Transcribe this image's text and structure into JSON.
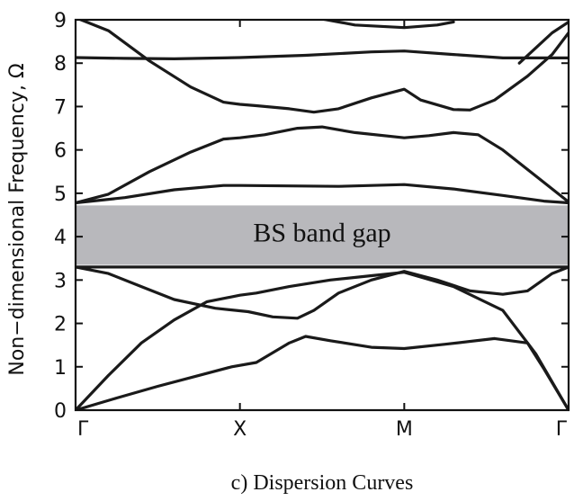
{
  "chart_data": {
    "type": "line",
    "ylabel": "Non−dimensional Frequency, Ω",
    "ylim": [
      0,
      9
    ],
    "yticks": [
      "0",
      "1",
      "2",
      "3",
      "4",
      "5",
      "6",
      "7",
      "8",
      "9"
    ],
    "xlim": [
      0,
      3
    ],
    "xticks": [
      {
        "label": "Γ",
        "pos": 0
      },
      {
        "label": "X",
        "pos": 1
      },
      {
        "label": "M",
        "pos": 2
      },
      {
        "label": "Γ",
        "pos": 3
      }
    ],
    "band_gap": {
      "label": "BS band gap",
      "from": 3.35,
      "to": 4.72,
      "color": "#b8b8bc"
    },
    "caption": "c) Dispersion Curves",
    "series": [
      {
        "points": [
          [
            0,
            0
          ],
          [
            0.25,
            0.28
          ],
          [
            0.5,
            0.55
          ],
          [
            0.75,
            0.8
          ],
          [
            0.95,
            1.0
          ],
          [
            1.1,
            1.1
          ],
          [
            1.3,
            1.55
          ],
          [
            1.4,
            1.7
          ],
          [
            1.55,
            1.6
          ],
          [
            1.8,
            1.45
          ],
          [
            2.0,
            1.42
          ],
          [
            2.25,
            1.52
          ],
          [
            2.55,
            1.65
          ],
          [
            2.75,
            1.55
          ],
          [
            2.85,
            0.95
          ],
          [
            3,
            0
          ]
        ]
      },
      {
        "points": [
          [
            0,
            0
          ],
          [
            0.2,
            0.8
          ],
          [
            0.4,
            1.55
          ],
          [
            0.6,
            2.08
          ],
          [
            0.8,
            2.5
          ],
          [
            1.0,
            2.65
          ],
          [
            1.1,
            2.7
          ],
          [
            1.3,
            2.85
          ],
          [
            1.55,
            3.0
          ],
          [
            1.8,
            3.1
          ],
          [
            2.0,
            3.18
          ],
          [
            2.3,
            2.85
          ],
          [
            2.6,
            2.3
          ],
          [
            2.8,
            1.3
          ],
          [
            3,
            0
          ]
        ]
      },
      {
        "points": [
          [
            0,
            3.3
          ],
          [
            0.2,
            3.15
          ],
          [
            0.4,
            2.85
          ],
          [
            0.6,
            2.55
          ],
          [
            0.85,
            2.35
          ],
          [
            1.05,
            2.27
          ],
          [
            1.2,
            2.15
          ],
          [
            1.35,
            2.12
          ],
          [
            1.45,
            2.3
          ],
          [
            1.6,
            2.7
          ],
          [
            1.8,
            3.0
          ],
          [
            2.0,
            3.2
          ],
          [
            2.2,
            3.0
          ],
          [
            2.4,
            2.75
          ],
          [
            2.6,
            2.67
          ],
          [
            2.75,
            2.75
          ],
          [
            2.9,
            3.15
          ],
          [
            3,
            3.3
          ]
        ]
      },
      {
        "points": [
          [
            0,
            3.3
          ],
          [
            3,
            3.3
          ]
        ]
      },
      {
        "points": [
          [
            0,
            4.78
          ],
          [
            0.3,
            4.9
          ],
          [
            0.6,
            5.08
          ],
          [
            0.9,
            5.18
          ],
          [
            1.0,
            5.18
          ],
          [
            1.3,
            5.17
          ],
          [
            1.6,
            5.16
          ],
          [
            2.0,
            5.2
          ],
          [
            2.3,
            5.1
          ],
          [
            2.6,
            4.95
          ],
          [
            2.85,
            4.82
          ],
          [
            3,
            4.78
          ]
        ]
      },
      {
        "points": [
          [
            0,
            4.78
          ],
          [
            0.2,
            4.98
          ],
          [
            0.45,
            5.5
          ],
          [
            0.7,
            5.95
          ],
          [
            0.9,
            6.25
          ],
          [
            1.0,
            6.28
          ],
          [
            1.15,
            6.35
          ],
          [
            1.35,
            6.5
          ],
          [
            1.5,
            6.53
          ],
          [
            1.7,
            6.4
          ],
          [
            2.0,
            6.28
          ],
          [
            2.15,
            6.33
          ],
          [
            2.3,
            6.4
          ],
          [
            2.45,
            6.35
          ],
          [
            2.6,
            6.0
          ],
          [
            2.8,
            5.4
          ],
          [
            3,
            4.8
          ]
        ]
      },
      {
        "points": [
          [
            0,
            9.05
          ],
          [
            0.2,
            8.75
          ],
          [
            0.45,
            8.05
          ],
          [
            0.7,
            7.45
          ],
          [
            0.9,
            7.1
          ],
          [
            1.0,
            7.05
          ],
          [
            1.1,
            7.02
          ],
          [
            1.3,
            6.95
          ],
          [
            1.45,
            6.87
          ],
          [
            1.6,
            6.95
          ],
          [
            1.8,
            7.2
          ],
          [
            2.0,
            7.4
          ],
          [
            2.1,
            7.15
          ],
          [
            2.3,
            6.93
          ],
          [
            2.4,
            6.92
          ],
          [
            2.55,
            7.15
          ],
          [
            2.75,
            7.7
          ],
          [
            2.9,
            8.2
          ],
          [
            3.0,
            8.7
          ]
        ]
      },
      {
        "points": [
          [
            0,
            8.13
          ],
          [
            0.3,
            8.11
          ],
          [
            0.6,
            8.1
          ],
          [
            1.0,
            8.13
          ],
          [
            1.4,
            8.18
          ],
          [
            1.8,
            8.26
          ],
          [
            2.0,
            8.28
          ],
          [
            2.3,
            8.2
          ],
          [
            2.6,
            8.12
          ],
          [
            3,
            8.12
          ]
        ]
      },
      {
        "points": [
          [
            1.5,
            9.02
          ],
          [
            1.7,
            8.88
          ],
          [
            2.0,
            8.82
          ],
          [
            2.2,
            8.88
          ],
          [
            2.3,
            8.95
          ]
        ]
      },
      {
        "points": [
          [
            2.7,
            8.0
          ],
          [
            2.8,
            8.35
          ],
          [
            2.9,
            8.7
          ],
          [
            3.0,
            8.95
          ]
        ]
      }
    ]
  }
}
